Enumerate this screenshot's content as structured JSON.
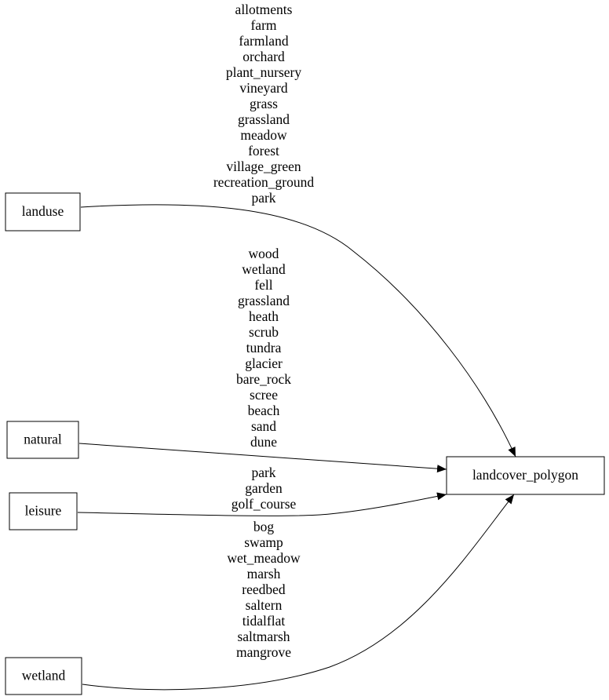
{
  "nodes": [
    {
      "label": "landuse"
    },
    {
      "label": "natural"
    },
    {
      "label": "leisure"
    },
    {
      "label": "wetland"
    },
    {
      "label": "landcover_polygon"
    }
  ],
  "edges": [
    {
      "labels": [
        "allotments",
        "farm",
        "farmland",
        "orchard",
        "plant_nursery",
        "vineyard",
        "grass",
        "grassland",
        "meadow",
        "forest",
        "village_green",
        "recreation_ground",
        "park"
      ]
    },
    {
      "labels": [
        "wood",
        "wetland",
        "fell",
        "grassland",
        "heath",
        "scrub",
        "tundra",
        "glacier",
        "bare_rock",
        "scree",
        "beach",
        "sand",
        "dune"
      ]
    },
    {
      "labels": [
        "park",
        "garden",
        "golf_course"
      ]
    },
    {
      "labels": [
        "bog",
        "swamp",
        "wet_meadow",
        "marsh",
        "reedbed",
        "saltern",
        "tidalflat",
        "saltmarsh",
        "mangrove"
      ]
    }
  ]
}
